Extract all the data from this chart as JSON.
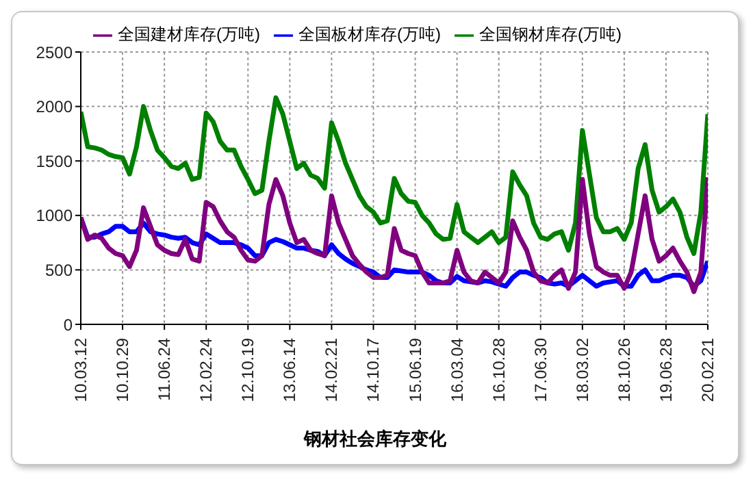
{
  "chart_data": {
    "type": "line",
    "title": "钢材社会库存变化",
    "categories": [
      "10.03.12",
      null,
      null,
      null,
      null,
      null,
      "10.10.29",
      null,
      null,
      null,
      null,
      null,
      "11.06.24",
      null,
      null,
      null,
      null,
      null,
      "12.02.24",
      null,
      null,
      null,
      null,
      null,
      "12.10.19",
      null,
      null,
      null,
      null,
      null,
      "13.06.14",
      null,
      null,
      null,
      null,
      null,
      "14.02.21",
      null,
      null,
      null,
      null,
      null,
      "14.10.17",
      null,
      null,
      null,
      null,
      null,
      "15.06.19",
      null,
      null,
      null,
      null,
      null,
      "16.03.04",
      null,
      null,
      null,
      null,
      null,
      "16.10.28",
      null,
      null,
      null,
      null,
      null,
      "17.06.30",
      null,
      null,
      null,
      null,
      null,
      "18.03.02",
      null,
      null,
      null,
      null,
      null,
      "18.10.26",
      null,
      null,
      null,
      null,
      null,
      "19.06.28",
      null,
      null,
      null,
      null,
      null,
      "20.02.21"
    ],
    "series": [
      {
        "name": "全国钢材库存(万吨)",
        "color": "#008000",
        "values": [
          1950,
          1630,
          1620,
          1600,
          1560,
          1540,
          1530,
          1380,
          1630,
          2000,
          1780,
          1600,
          1530,
          1450,
          1430,
          1480,
          1330,
          1350,
          1940,
          1860,
          1680,
          1600,
          1600,
          1450,
          1330,
          1200,
          1230,
          1680,
          2080,
          1930,
          1680,
          1430,
          1480,
          1370,
          1340,
          1250,
          1850,
          1680,
          1480,
          1330,
          1180,
          1080,
          1030,
          930,
          950,
          1340,
          1200,
          1130,
          1120,
          1000,
          930,
          830,
          780,
          790,
          1100,
          850,
          800,
          750,
          800,
          850,
          750,
          800,
          1400,
          1280,
          1180,
          930,
          800,
          780,
          830,
          850,
          680,
          930,
          1780,
          1380,
          980,
          850,
          850,
          880,
          780,
          930,
          1430,
          1650,
          1230,
          1030,
          1080,
          1150,
          1030,
          800,
          650,
          1030,
          1930
        ]
      },
      {
        "name": "全国板材库存(万吨)",
        "color": "#0000ff",
        "values": [
          980,
          800,
          800,
          830,
          850,
          900,
          900,
          850,
          850,
          930,
          850,
          830,
          820,
          800,
          790,
          800,
          750,
          730,
          830,
          790,
          750,
          750,
          750,
          730,
          700,
          630,
          630,
          750,
          780,
          760,
          730,
          700,
          700,
          680,
          670,
          630,
          730,
          650,
          600,
          560,
          530,
          500,
          480,
          430,
          430,
          500,
          490,
          480,
          480,
          480,
          450,
          400,
          380,
          380,
          440,
          400,
          390,
          380,
          400,
          390,
          370,
          350,
          430,
          480,
          480,
          450,
          430,
          380,
          370,
          380,
          350,
          400,
          450,
          400,
          350,
          380,
          390,
          400,
          350,
          350,
          450,
          500,
          400,
          400,
          430,
          450,
          450,
          430,
          350,
          400,
          580
        ]
      },
      {
        "name": "全国建材库存(万吨)",
        "color": "#800080",
        "values": [
          980,
          780,
          820,
          790,
          700,
          650,
          630,
          530,
          680,
          1070,
          900,
          730,
          680,
          650,
          640,
          780,
          600,
          580,
          1120,
          1080,
          950,
          850,
          800,
          680,
          590,
          580,
          630,
          1100,
          1330,
          1180,
          930,
          750,
          780,
          680,
          650,
          630,
          1180,
          930,
          780,
          630,
          550,
          480,
          430,
          430,
          450,
          880,
          680,
          650,
          630,
          480,
          380,
          380,
          380,
          400,
          680,
          480,
          400,
          380,
          480,
          430,
          380,
          480,
          950,
          800,
          680,
          480,
          400,
          380,
          450,
          500,
          330,
          480,
          1330,
          830,
          530,
          480,
          450,
          450,
          330,
          480,
          830,
          1180,
          780,
          580,
          630,
          700,
          580,
          480,
          300,
          480,
          1350
        ]
      }
    ],
    "ylim": [
      0,
      2500
    ],
    "yticks": [
      0,
      500,
      1000,
      1500,
      2000,
      2500
    ],
    "grid": true,
    "legend": "top",
    "marker": "none",
    "line_style": "solid"
  }
}
